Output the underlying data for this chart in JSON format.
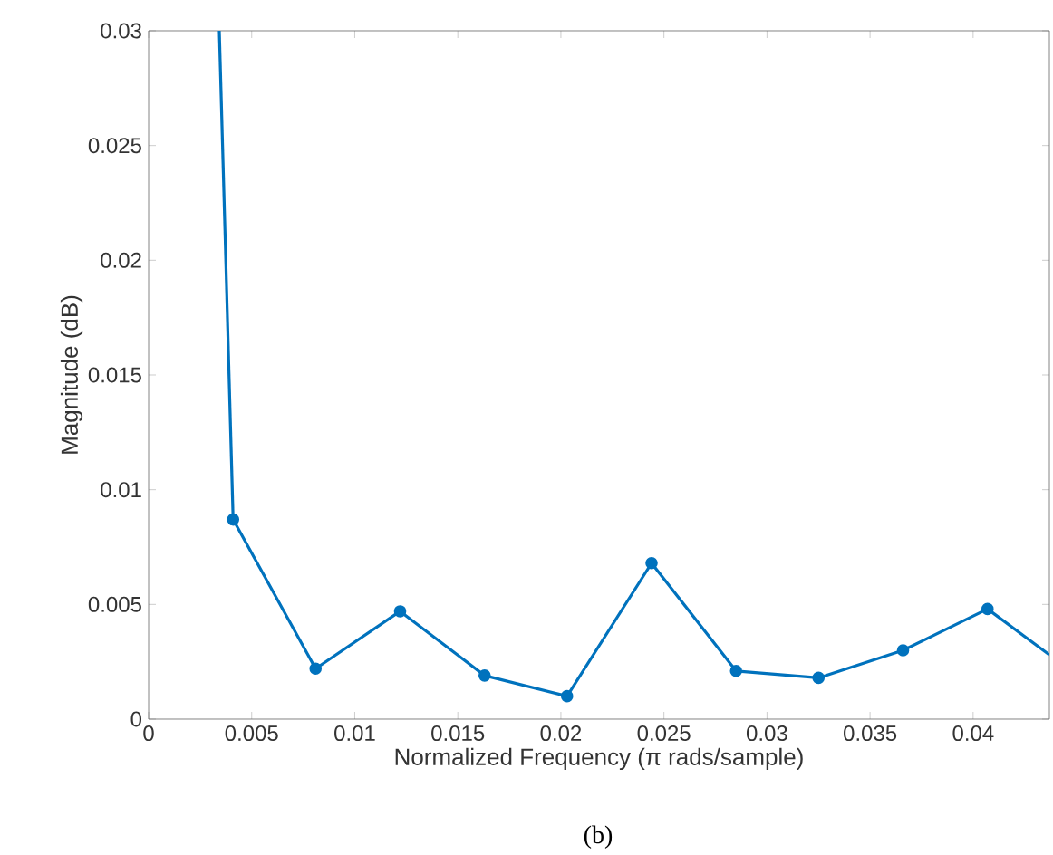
{
  "chart_data": {
    "type": "line",
    "xlabel": "Normalized Frequency (π rads/sample)",
    "ylabel": "Magnitude (dB)",
    "annotations": [
      "(b)"
    ],
    "xlim": [
      0,
      0.0437
    ],
    "ylim": [
      0,
      0.03
    ],
    "xticks": [
      0,
      0.005,
      0.01,
      0.015,
      0.02,
      0.025,
      0.03,
      0.035,
      0.04
    ],
    "yticks": [
      0,
      0.005,
      0.01,
      0.015,
      0.02,
      0.025,
      0.03
    ],
    "marker": "circle",
    "line_style": "solid",
    "series": [
      {
        "color": "#0072bd",
        "x": [
          0.0041,
          0.0081,
          0.0122,
          0.0163,
          0.0203,
          0.0244,
          0.0285,
          0.0325,
          0.0366,
          0.0407
        ],
        "values": [
          0.0087,
          0.0022,
          0.0047,
          0.0019,
          0.001,
          0.0068,
          0.0021,
          0.0018,
          0.003,
          0.0048
        ]
      },
      {
        "color": "#0072bd",
        "marker": "none",
        "x": [
          0.00343,
          0.0041
        ],
        "values": [
          0.03,
          0.0087
        ]
      },
      {
        "color": "#0072bd",
        "marker": "none",
        "x": [
          0.0407,
          0.0437
        ],
        "values": [
          0.0048,
          0.0028
        ]
      }
    ]
  }
}
